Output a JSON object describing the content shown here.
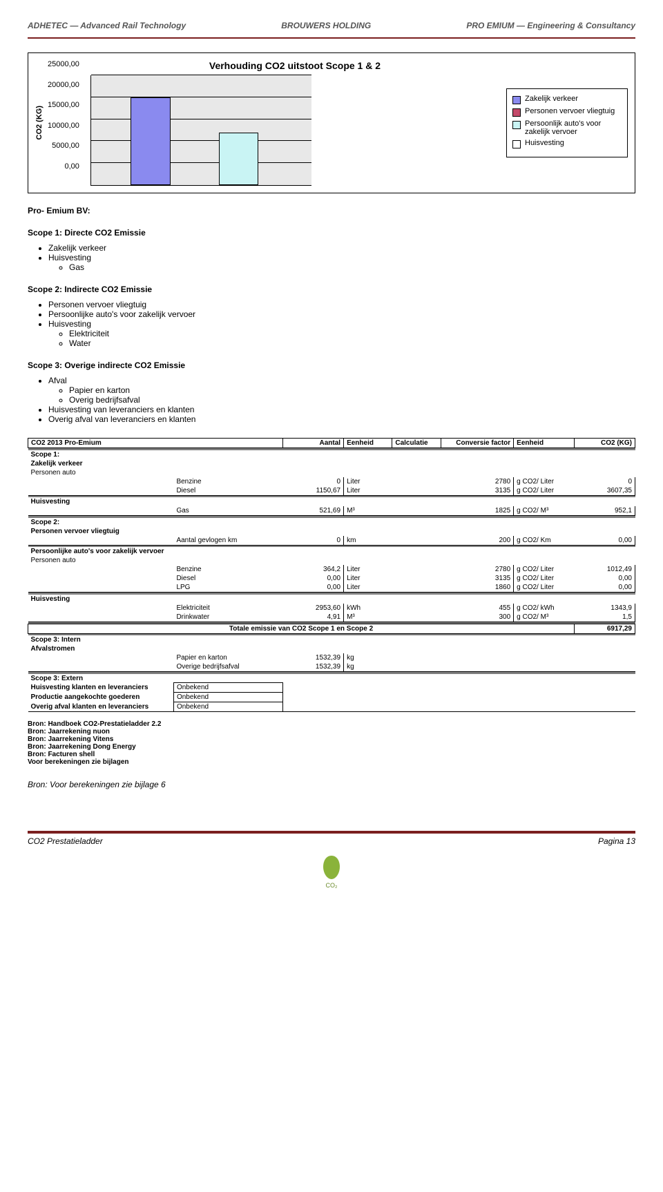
{
  "logos": {
    "left": "ADHETEC — Advanced Rail Technology",
    "center": "BROUWERS HOLDING",
    "right": "PRO EMIUM — Engineering & Consultancy"
  },
  "chart": {
    "title": "Verhouding CO2 uitstoot Scope 1 & 2",
    "ylabel": "CO2 (KG)",
    "ylim": [
      0,
      25000
    ],
    "ytick_step": 5000,
    "yticks": [
      "25000,00",
      "20000,00",
      "15000,00",
      "10000,00",
      "5000,00",
      "0,00"
    ],
    "grid_color": "#000000",
    "background_color": "#e8e8e8",
    "bars": [
      {
        "x_pct": 18,
        "width_pct": 18,
        "value": 20000,
        "color": "#8a8aef"
      },
      {
        "x_pct": 58,
        "width_pct": 18,
        "value": 12000,
        "color": "#c9f4f4"
      }
    ],
    "legend": [
      {
        "label": "Zakelijk verkeer",
        "color": "#8a8aef"
      },
      {
        "label": "Personen vervoer vliegtuig",
        "color": "#c44a6a"
      },
      {
        "label": "Persoonlijk auto's voor zakelijk vervoer",
        "color": "#c9f4f4"
      },
      {
        "label": "Huisvesting",
        "color": "#ffffff"
      }
    ]
  },
  "company": "Pro- Emium BV:",
  "scopes": {
    "s1_title": "Scope 1: Directe CO2 Emissie",
    "s1_items": [
      "Zakelijk verkeer",
      "Huisvesting"
    ],
    "s1_sub": [
      "Gas"
    ],
    "s2_title": "Scope 2: Indirecte CO2 Emissie",
    "s2_items": [
      "Personen vervoer vliegtuig",
      "Persoonlijke auto's voor zakelijk vervoer",
      "Huisvesting"
    ],
    "s2_sub": [
      "Elektriciteit",
      "Water"
    ],
    "s3_title": "Scope 3: Overige indirecte CO2 Emissie",
    "s3_items": [
      "Afval"
    ],
    "s3_sub": [
      "Papier en karton",
      "Overig bedrijfsafval"
    ],
    "s3_items2": [
      "Huisvesting van leveranciers en klanten",
      "Overig afval van leveranciers en klanten"
    ]
  },
  "table": {
    "title": "CO2 2013 Pro-Emium",
    "headers": [
      "Aantal",
      "Eenheid",
      "Calculatie",
      "Conversie factor",
      "Eenheid",
      "CO2 (KG)"
    ],
    "scope1": "Scope 1:",
    "zv": "Zakelijk verkeer",
    "pa": "Personen auto",
    "r_benzine": {
      "label": "Benzine",
      "aantal": "0",
      "eenh": "Liter",
      "cf": "2780",
      "eenh2": "g CO2/ Liter",
      "co2": "0"
    },
    "r_diesel": {
      "label": "Diesel",
      "aantal": "1150,67",
      "eenh": "Liter",
      "cf": "3135",
      "eenh2": "g CO2/ Liter",
      "co2": "3607,35"
    },
    "huis": "Huisvesting",
    "r_gas": {
      "label": "Gas",
      "aantal": "521,69",
      "eenh": "M³",
      "cf": "1825",
      "eenh2": "g CO2/ M³",
      "co2": "952,1"
    },
    "scope2": "Scope 2:",
    "pvv": "Personen vervoer vliegtuig",
    "r_km": {
      "label": "Aantal gevlogen km",
      "aantal": "0",
      "eenh": "km",
      "cf": "200",
      "eenh2": "g CO2/ Km",
      "co2": "0,00"
    },
    "pazv": "Persoonlijke auto's voor zakelijk vervoer",
    "r_benz2": {
      "label": "Benzine",
      "aantal": "364,2",
      "eenh": "Liter",
      "cf": "2780",
      "eenh2": "g CO2/ Liter",
      "co2": "1012,49"
    },
    "r_dies2": {
      "label": "Diesel",
      "aantal": "0,00",
      "eenh": "Liter",
      "cf": "3135",
      "eenh2": "g CO2/ Liter",
      "co2": "0,00"
    },
    "r_lpg": {
      "label": "LPG",
      "aantal": "0,00",
      "eenh": "Liter",
      "cf": "1860",
      "eenh2": "g CO2/ Liter",
      "co2": "0,00"
    },
    "r_elek": {
      "label": "Elektriciteit",
      "aantal": "2953,60",
      "eenh": "kWh",
      "cf": "455",
      "eenh2": "g CO2/ kWh",
      "co2": "1343,9"
    },
    "r_drink": {
      "label": "Drinkwater",
      "aantal": "4,91",
      "eenh": "M³",
      "cf": "300",
      "eenh2": "g CO2/ M³",
      "co2": "1,5"
    },
    "total_label": "Totale emissie van CO2 Scope 1 en Scope 2",
    "total_value": "6917,29",
    "scope3i": "Scope 3: Intern",
    "afval": "Afvalstromen",
    "r_papier": {
      "label": "Papier en karton",
      "aantal": "1532,39",
      "eenh": "kg"
    },
    "r_overig": {
      "label": "Overige bedrijfsafval",
      "aantal": "1532,39",
      "eenh": "kg"
    },
    "scope3e": "Scope 3: Extern",
    "ext1_l": "Huisvesting klanten en leveranciers",
    "ext1_v": "Onbekend",
    "ext2_l": "Productie aangekochte goederen",
    "ext2_v": "Onbekend",
    "ext3_l": "Overig afval klanten en leveranciers",
    "ext3_v": "Onbekend"
  },
  "bronnen": [
    "Bron: Handboek CO2-Prestatieladder 2.2",
    "Bron: Jaarrekening nuon",
    "Bron: Jaarrekening Vitens",
    "Bron: Jaarrekening Dong Energy",
    "Bron: Facturen shell",
    "Voor berekeningen zie bijlagen"
  ],
  "footnote": "Bron: Voor berekeningen zie bijlage 6",
  "footer": {
    "left": "CO2 Prestatieladder",
    "right": "Pagina 13",
    "logo": "CO₂"
  }
}
